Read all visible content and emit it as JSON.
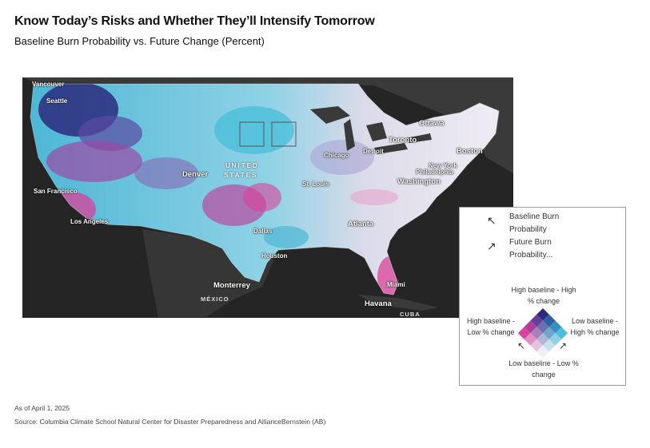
{
  "title": "Know Today’s Risks and Whether They’ll Intensify Tomorrow",
  "subtitle": "Baseline Burn Probability vs. Future Change (Percent)",
  "map": {
    "cities": {
      "vancouver": "Vancouver",
      "seattle": "Seattle",
      "san_francisco": "San Francisco",
      "los_angeles": "Los Angeles",
      "denver": "Denver",
      "dallas": "Dallas",
      "houston": "Houston",
      "monterrey": "Monterrey",
      "chicago": "Chicago",
      "detroit": "Detroit",
      "toronto": "Toronto",
      "ottawa": "Ottawa",
      "boston": "Boston",
      "new_york": "New York",
      "philadelphia": "Philadelphia",
      "washington": "Washington",
      "st_louis": "St. Louis",
      "atlanta": "Atlanta",
      "miami": "Miami",
      "havana": "Havana"
    },
    "countries": {
      "united": "UNITED",
      "states": "STATES",
      "mexico": "MÉXICO",
      "cuba": "CUBA"
    }
  },
  "legend": {
    "baseline_label": "Baseline Burn Probability",
    "future_label": "Future Burn Probability...",
    "top": "High baseline - High % change",
    "left": "High baseline - Low % change",
    "right": "Low baseline - High % change",
    "bottom": "Low baseline - Low % change",
    "colors": {
      "high_high": "#2b2a7c",
      "high_low": "#d9429a",
      "low_high": "#4bbfd9",
      "low_low": "#f1eef4"
    }
  },
  "footnotes": {
    "date": "As of April 1, 2025",
    "source": "Source: Columbia Climate School Natural Center for Disaster Preparedness and AllianceBernstein (AB)"
  }
}
